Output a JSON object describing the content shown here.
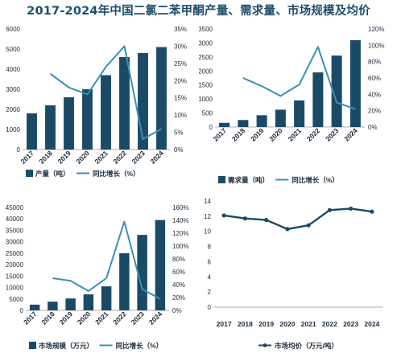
{
  "title": "2017-2024年中国二氯二苯甲酮产量、需求量、市场规模及均价",
  "colors": {
    "bar": "#1b4a66",
    "line": "#3a8fb8",
    "text": "#1a2b3a",
    "axis": "#333333"
  },
  "chart_data": [
    {
      "type": "bar",
      "categories": [
        "2017",
        "2018",
        "2019",
        "2020",
        "2021",
        "2022",
        "2023",
        "2024"
      ],
      "series": [
        {
          "name": "产量（吨）",
          "kind": "bar",
          "axis": "left",
          "values": [
            1800,
            2200,
            2600,
            3000,
            3700,
            4600,
            4800,
            5100
          ]
        },
        {
          "name": "同比增长（%）",
          "kind": "line",
          "axis": "right",
          "values": [
            null,
            22,
            18,
            16,
            24,
            30,
            3,
            6
          ]
        }
      ],
      "yticks_left": [
        "0",
        "1000",
        "2000",
        "3000",
        "4000",
        "5000",
        "6000"
      ],
      "ylim_left": [
        0,
        6000
      ],
      "yticks_right": [
        "0%",
        "5%",
        "10%",
        "15%",
        "20%",
        "25%",
        "30%",
        "35%"
      ],
      "ylim_right": [
        0,
        35
      ],
      "legend_position": "bottom",
      "grid": false
    },
    {
      "type": "bar",
      "categories": [
        "2017",
        "2018",
        "2019",
        "2020",
        "2021",
        "2022",
        "2023",
        "2024"
      ],
      "series": [
        {
          "name": "需求量（吨）",
          "kind": "bar",
          "axis": "left",
          "values": [
            150,
            250,
            420,
            620,
            950,
            1950,
            2550,
            3100
          ]
        },
        {
          "name": "同比增长（%）",
          "kind": "line",
          "axis": "right",
          "values": [
            null,
            60,
            50,
            38,
            52,
            98,
            30,
            22
          ]
        }
      ],
      "yticks_left": [
        "0",
        "500",
        "1000",
        "1500",
        "2000",
        "2500",
        "3000",
        "3500"
      ],
      "ylim_left": [
        0,
        3500
      ],
      "yticks_right": [
        "0%",
        "20%",
        "40%",
        "60%",
        "80%",
        "100%",
        "120%"
      ],
      "ylim_right": [
        0,
        120
      ],
      "legend_position": "bottom",
      "grid": false
    },
    {
      "type": "bar",
      "categories": [
        "2017",
        "2018",
        "2019",
        "2020",
        "2021",
        "2022",
        "2023",
        "2024"
      ],
      "series": [
        {
          "name": "市场规模（万元）",
          "kind": "bar",
          "axis": "left",
          "values": [
            2500,
            3800,
            5200,
            7000,
            10500,
            25000,
            33000,
            39500
          ]
        },
        {
          "name": "同比增长（%）",
          "kind": "line",
          "axis": "right",
          "values": [
            null,
            50,
            46,
            30,
            50,
            138,
            33,
            18
          ]
        }
      ],
      "yticks_left": [
        "0",
        "5000",
        "10000",
        "15000",
        "20000",
        "25000",
        "30000",
        "35000",
        "40000",
        "45000"
      ],
      "ylim_left": [
        0,
        45000
      ],
      "yticks_right": [
        "0%",
        "20%",
        "40%",
        "60%",
        "80%",
        "100%",
        "120%",
        "140%",
        "160%"
      ],
      "ylim_right": [
        0,
        160
      ],
      "legend_position": "bottom",
      "grid": false
    },
    {
      "type": "line",
      "categories": [
        "2017",
        "2018",
        "2019",
        "2020",
        "2021",
        "2022",
        "2023",
        "2024"
      ],
      "series": [
        {
          "name": "市场均价（万元/吨）",
          "kind": "line",
          "axis": "left",
          "values": [
            12.1,
            11.7,
            11.5,
            10.3,
            10.8,
            12.8,
            13.0,
            12.6
          ]
        }
      ],
      "yticks_left": [
        "0",
        "2",
        "4",
        "6",
        "8",
        "10",
        "12",
        "14"
      ],
      "ylim_left": [
        0,
        14
      ],
      "legend_position": "bottom",
      "grid": false
    }
  ]
}
